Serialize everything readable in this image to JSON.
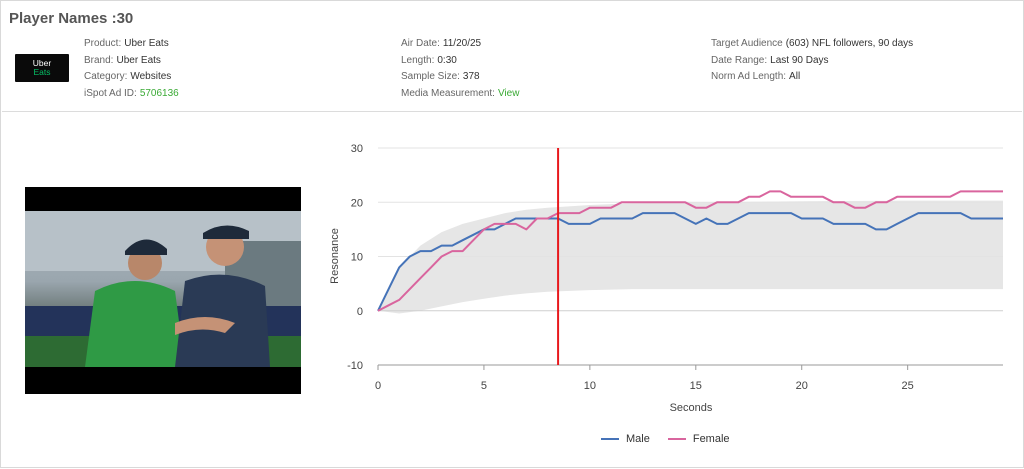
{
  "header": {
    "title": "Player Names :30",
    "logo": {
      "line1": "Uber",
      "line2": "Eats"
    },
    "col1": [
      {
        "key": "Product:",
        "value": "Uber Eats"
      },
      {
        "key": "Brand:",
        "value": "Uber Eats"
      },
      {
        "key": "Category:",
        "value": "Websites"
      },
      {
        "key": "iSpot Ad ID:",
        "value": "5706136"
      }
    ],
    "col2": [
      {
        "key": "Air Date:",
        "value": "11/20/25"
      },
      {
        "key": "Length:",
        "value": "0:30"
      },
      {
        "key": "Sample Size:",
        "value": "378"
      },
      {
        "key": "Media Measurement:",
        "value": "View"
      }
    ],
    "col3": [
      {
        "key": "Target Audience",
        "value": "(603) NFL followers, 90 days"
      },
      {
        "key": "Date Range:",
        "value": "Last 90 Days"
      },
      {
        "key": "Norm Ad Length:",
        "value": "All"
      }
    ]
  },
  "colors": {
    "male": "#4573b8",
    "female": "#d9659e",
    "marker": "#e8191d",
    "band": "#e6e6e6",
    "link": "#3aaa35"
  },
  "chart_data": {
    "type": "line",
    "xlabel": "Seconds",
    "ylabel": "Resonance",
    "xlim": [
      0,
      29.5
    ],
    "ylim": [
      -10,
      30
    ],
    "xticks": [
      0,
      5,
      10,
      15,
      20,
      25
    ],
    "yticks": [
      -10,
      0,
      10,
      20,
      30
    ],
    "grid": true,
    "legend": "bottom",
    "marker_x": 8.5,
    "norm_band": {
      "x": [
        0,
        1,
        2,
        3,
        4,
        5,
        6,
        7,
        8,
        10,
        12,
        15,
        20,
        25,
        29.5
      ],
      "upper": [
        0,
        8,
        12,
        14.5,
        16,
        17,
        18,
        18.6,
        19,
        19.5,
        19.8,
        20,
        20.2,
        20.3,
        20.3
      ],
      "lower": [
        0,
        -0.5,
        0,
        0.8,
        1.6,
        2.2,
        2.8,
        3.2,
        3.5,
        3.8,
        4,
        4,
        4,
        4,
        4
      ]
    },
    "series": [
      {
        "name": "Male",
        "x": [
          0,
          0.5,
          1,
          1.5,
          2,
          2.5,
          3,
          3.5,
          4,
          4.5,
          5,
          5.5,
          6,
          6.5,
          7,
          7.5,
          8,
          8.5,
          9,
          9.5,
          10,
          10.5,
          11,
          11.5,
          12,
          12.5,
          13,
          13.5,
          14,
          14.5,
          15,
          15.5,
          16,
          16.5,
          17,
          17.5,
          18,
          18.5,
          19,
          19.5,
          20,
          20.5,
          21,
          21.5,
          22,
          22.5,
          23,
          23.5,
          24,
          24.5,
          25,
          25.5,
          26,
          26.5,
          27,
          27.5,
          28,
          28.5,
          29,
          29.5
        ],
        "values": [
          0,
          4,
          8,
          10,
          11,
          11,
          12,
          12,
          13,
          14,
          15,
          15,
          16,
          17,
          17,
          17,
          17,
          17,
          16,
          16,
          16,
          17,
          17,
          17,
          17,
          18,
          18,
          18,
          18,
          17,
          16,
          17,
          16,
          16,
          17,
          18,
          18,
          18,
          18,
          18,
          17,
          17,
          17,
          16,
          16,
          16,
          16,
          15,
          15,
          16,
          17,
          18,
          18,
          18,
          18,
          18,
          17,
          17,
          17,
          17
        ]
      },
      {
        "name": "Female",
        "x": [
          0,
          0.5,
          1,
          1.5,
          2,
          2.5,
          3,
          3.5,
          4,
          4.5,
          5,
          5.5,
          6,
          6.5,
          7,
          7.5,
          8,
          8.5,
          9,
          9.5,
          10,
          10.5,
          11,
          11.5,
          12,
          12.5,
          13,
          13.5,
          14,
          14.5,
          15,
          15.5,
          16,
          16.5,
          17,
          17.5,
          18,
          18.5,
          19,
          19.5,
          20,
          20.5,
          21,
          21.5,
          22,
          22.5,
          23,
          23.5,
          24,
          24.5,
          25,
          25.5,
          26,
          26.5,
          27,
          27.5,
          28,
          28.5,
          29,
          29.5
        ],
        "values": [
          0,
          1,
          2,
          4,
          6,
          8,
          10,
          11,
          11,
          13,
          15,
          16,
          16,
          16,
          15,
          17,
          17,
          18,
          18,
          18,
          19,
          19,
          19,
          20,
          20,
          20,
          20,
          20,
          20,
          20,
          19,
          19,
          20,
          20,
          20,
          21,
          21,
          22,
          22,
          21,
          21,
          21,
          21,
          20,
          20,
          19,
          19,
          20,
          20,
          21,
          21,
          21,
          21,
          21,
          21,
          22,
          22,
          22,
          22,
          22
        ]
      }
    ]
  }
}
